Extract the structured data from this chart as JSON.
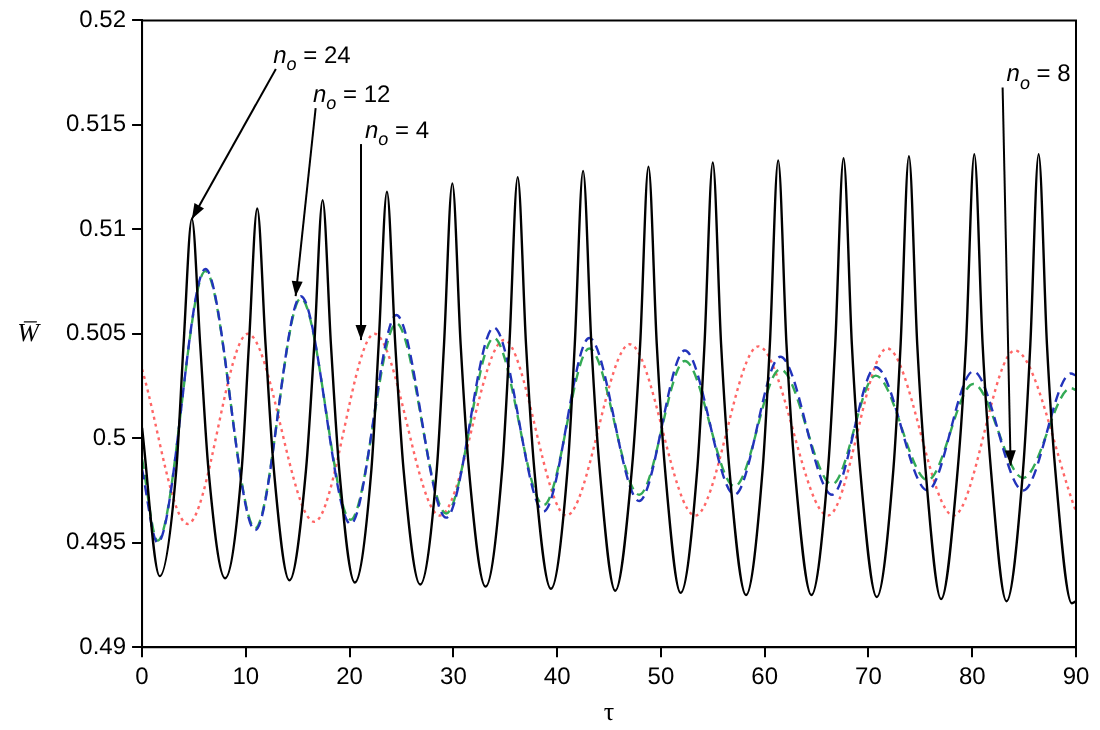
{
  "chart_data": {
    "type": "line",
    "xlabel": "τ",
    "ylabel": "W̅",
    "xlim": [
      0,
      90
    ],
    "xticks": [
      0,
      10,
      20,
      30,
      40,
      50,
      60,
      70,
      80,
      90
    ],
    "ylim": [
      0.49,
      0.52
    ],
    "yticks": [
      0.49,
      0.495,
      0.5,
      0.505,
      0.51,
      0.515,
      0.52
    ],
    "marker": "none",
    "legend": false,
    "series": [
      {
        "color": "#000000",
        "line_style": "solid",
        "x": [
          0,
          1.7,
          3.3,
          4.0,
          4.8,
          5.6,
          6.4,
          8.0,
          9.6,
          10.3,
          11.1,
          11.9,
          12.7,
          14.2,
          15.8,
          16.6,
          17.4,
          18.2,
          19.0,
          20.5,
          22.1,
          22.8,
          23.6,
          24.4,
          25.2,
          26.8,
          28.4,
          29.1,
          29.9,
          30.7,
          31.5,
          33.1,
          34.7,
          35.4,
          36.2,
          37.0,
          37.8,
          39.4,
          41.0,
          41.7,
          42.5,
          43.3,
          44.1,
          45.6,
          47.2,
          48.0,
          48.8,
          49.6,
          50.4,
          51.9,
          53.5,
          54.2,
          55.0,
          55.8,
          56.6,
          58.2,
          59.8,
          60.5,
          61.3,
          62.1,
          62.9,
          64.5,
          66.1,
          66.8,
          67.6,
          68.4,
          69.2,
          70.8,
          72.4,
          73.1,
          73.9,
          74.7,
          75.5,
          77.0,
          78.6,
          79.4,
          80.2,
          81.0,
          81.8,
          83.3,
          84.9,
          85.6,
          86.4,
          87.2,
          88.0,
          89.6,
          90
        ],
        "values": [
          0.5005,
          0.4934,
          0.4985,
          0.5045,
          0.5105,
          0.5045,
          0.4985,
          0.4933,
          0.4985,
          0.5045,
          0.511,
          0.5045,
          0.4985,
          0.4932,
          0.4985,
          0.5045,
          0.5114,
          0.5045,
          0.4985,
          0.4931,
          0.4985,
          0.5045,
          0.5118,
          0.5045,
          0.4985,
          0.493,
          0.4985,
          0.5045,
          0.5122,
          0.5045,
          0.4985,
          0.4929,
          0.4985,
          0.5045,
          0.5125,
          0.5045,
          0.4985,
          0.4928,
          0.4985,
          0.5045,
          0.5128,
          0.5045,
          0.4985,
          0.4927,
          0.4985,
          0.5045,
          0.513,
          0.5045,
          0.4985,
          0.4926,
          0.4985,
          0.5045,
          0.5132,
          0.5045,
          0.4985,
          0.4925,
          0.4985,
          0.5045,
          0.5133,
          0.5045,
          0.4985,
          0.4925,
          0.4985,
          0.5045,
          0.5134,
          0.5045,
          0.4985,
          0.4924,
          0.4985,
          0.5045,
          0.5135,
          0.5045,
          0.4985,
          0.4923,
          0.4985,
          0.5045,
          0.5136,
          0.5045,
          0.4985,
          0.4922,
          0.4985,
          0.5045,
          0.5136,
          0.5045,
          0.4985,
          0.4921,
          0.4922
        ]
      },
      {
        "color": "#2233bb",
        "line_style": "dashed",
        "x": [
          0,
          1.5,
          6.1,
          10.9,
          15.3,
          20.1,
          24.5,
          29.3,
          33.9,
          38.7,
          43.1,
          47.9,
          52.3,
          57.1,
          61.5,
          66.5,
          70.7,
          75.7,
          80.1,
          84.9,
          89.5,
          90
        ],
        "values": [
          0.4985,
          0.495,
          0.5081,
          0.4956,
          0.5068,
          0.4959,
          0.5059,
          0.4962,
          0.5053,
          0.4965,
          0.5048,
          0.497,
          0.5042,
          0.4973,
          0.5039,
          0.4973,
          0.5034,
          0.4975,
          0.5032,
          0.4975,
          0.5031,
          0.503
        ]
      },
      {
        "color": "#33aa55",
        "line_style": "dashed",
        "x": [
          0,
          1.5,
          6.1,
          10.9,
          15.3,
          20.1,
          24.5,
          29.3,
          33.9,
          38.7,
          43.1,
          47.9,
          52.3,
          57.1,
          61.5,
          66.5,
          70.7,
          75.7,
          80.1,
          84.9,
          89.5,
          90
        ],
        "values": [
          0.499,
          0.4951,
          0.508,
          0.4957,
          0.5067,
          0.4961,
          0.5055,
          0.4964,
          0.5048,
          0.4968,
          0.5043,
          0.4973,
          0.5037,
          0.4977,
          0.5033,
          0.4978,
          0.503,
          0.498,
          0.5026,
          0.4981,
          0.5024,
          0.5023
        ]
      },
      {
        "color": "#ff6666",
        "line_style": "dotted",
        "x": [
          0,
          4.4,
          10.2,
          16.6,
          22.4,
          28.7,
          34.9,
          40.9,
          47.0,
          53.3,
          59.4,
          66.1,
          71.8,
          78.2,
          84.1,
          90
        ],
        "values": [
          0.5033,
          0.4959,
          0.505,
          0.496,
          0.505,
          0.4963,
          0.5047,
          0.4963,
          0.5045,
          0.4963,
          0.5044,
          0.4963,
          0.5043,
          0.4963,
          0.5042,
          0.4965
        ]
      }
    ],
    "annotations": [
      {
        "text": "n$_{o}$ = 24",
        "x": 4.8,
        "y": 0.5105
      },
      {
        "text": "n$_{o}$ = 12",
        "x": 14.8,
        "y": 0.5068
      },
      {
        "text": "n$_{o}$ = 4",
        "x": 21.1,
        "y": 0.5047
      },
      {
        "text": "n$_{o}$ = 8",
        "x": 83.7,
        "y": 0.4987
      }
    ]
  }
}
